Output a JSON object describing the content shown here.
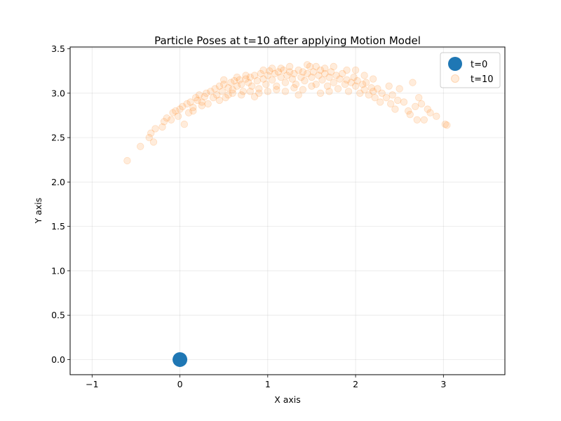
{
  "chart_data": {
    "type": "scatter",
    "title": "Particle Poses at t=10 after applying Motion Model",
    "xlabel": "X axis",
    "ylabel": "Y axis",
    "xlim": [
      -1.25,
      3.7
    ],
    "ylim": [
      -0.17,
      3.52
    ],
    "xticks": [
      -1,
      0,
      1,
      2,
      3
    ],
    "yticks": [
      0.0,
      0.5,
      1.0,
      1.5,
      2.0,
      2.5,
      3.0,
      3.5
    ],
    "xtick_labels": [
      "−1",
      "0",
      "1",
      "2",
      "3"
    ],
    "ytick_labels": [
      "0.0",
      "0.5",
      "1.0",
      "1.5",
      "2.0",
      "2.5",
      "3.0",
      "3.5"
    ],
    "grid": true,
    "legend_position": "top-right",
    "series": [
      {
        "name": "t=0",
        "color": "#1f77b4",
        "points": [
          [
            0,
            0
          ]
        ]
      },
      {
        "name": "t=10",
        "color": "#ff7f0e",
        "alpha": 0.15,
        "points": [
          [
            -0.6,
            2.24
          ],
          [
            -0.45,
            2.4
          ],
          [
            -0.35,
            2.5
          ],
          [
            -0.33,
            2.55
          ],
          [
            -0.3,
            2.45
          ],
          [
            -0.28,
            2.6
          ],
          [
            -0.2,
            2.62
          ],
          [
            -0.18,
            2.68
          ],
          [
            -0.15,
            2.72
          ],
          [
            -0.1,
            2.7
          ],
          [
            -0.08,
            2.78
          ],
          [
            -0.05,
            2.8
          ],
          [
            -0.02,
            2.74
          ],
          [
            0.0,
            2.82
          ],
          [
            0.03,
            2.85
          ],
          [
            0.05,
            2.65
          ],
          [
            0.08,
            2.88
          ],
          [
            0.1,
            2.78
          ],
          [
            0.12,
            2.9
          ],
          [
            0.15,
            2.84
          ],
          [
            0.18,
            2.95
          ],
          [
            0.2,
            2.92
          ],
          [
            0.22,
            2.98
          ],
          [
            0.25,
            2.9
          ],
          [
            0.28,
            2.96
          ],
          [
            0.3,
            3.0
          ],
          [
            0.32,
            2.88
          ],
          [
            0.35,
            3.02
          ],
          [
            0.38,
            2.95
          ],
          [
            0.4,
            3.05
          ],
          [
            0.42,
            2.98
          ],
          [
            0.45,
            3.08
          ],
          [
            0.48,
            3.02
          ],
          [
            0.5,
            3.1
          ],
          [
            0.52,
            2.95
          ],
          [
            0.55,
            3.06
          ],
          [
            0.58,
            3.12
          ],
          [
            0.6,
            3.04
          ],
          [
            0.62,
            3.14
          ],
          [
            0.65,
            3.08
          ],
          [
            0.68,
            3.15
          ],
          [
            0.7,
            3.1
          ],
          [
            0.72,
            3.02
          ],
          [
            0.75,
            3.16
          ],
          [
            0.78,
            3.12
          ],
          [
            0.8,
            3.18
          ],
          [
            0.82,
            3.08
          ],
          [
            0.85,
            3.2
          ],
          [
            0.88,
            3.14
          ],
          [
            0.9,
            3.05
          ],
          [
            0.92,
            3.22
          ],
          [
            0.95,
            3.16
          ],
          [
            0.98,
            3.1
          ],
          [
            1.0,
            3.2
          ],
          [
            1.02,
            3.25
          ],
          [
            1.05,
            3.15
          ],
          [
            1.08,
            3.22
          ],
          [
            1.1,
            3.08
          ],
          [
            1.12,
            3.24
          ],
          [
            1.15,
            3.18
          ],
          [
            1.18,
            3.26
          ],
          [
            1.2,
            3.12
          ],
          [
            1.22,
            3.2
          ],
          [
            1.25,
            3.24
          ],
          [
            1.28,
            3.16
          ],
          [
            1.3,
            3.22
          ],
          [
            1.32,
            3.1
          ],
          [
            1.35,
            3.26
          ],
          [
            1.38,
            3.18
          ],
          [
            1.4,
            3.24
          ],
          [
            1.42,
            3.14
          ],
          [
            1.45,
            3.22
          ],
          [
            1.48,
            3.3
          ],
          [
            1.5,
            3.18
          ],
          [
            1.52,
            3.24
          ],
          [
            1.55,
            3.1
          ],
          [
            1.58,
            3.2
          ],
          [
            1.6,
            3.26
          ],
          [
            1.62,
            3.15
          ],
          [
            1.65,
            3.22
          ],
          [
            1.68,
            3.08
          ],
          [
            1.7,
            3.18
          ],
          [
            1.72,
            3.24
          ],
          [
            1.75,
            3.12
          ],
          [
            1.78,
            3.2
          ],
          [
            1.8,
            3.05
          ],
          [
            1.82,
            3.16
          ],
          [
            1.85,
            3.22
          ],
          [
            1.88,
            3.1
          ],
          [
            1.9,
            3.15
          ],
          [
            1.92,
            3.02
          ],
          [
            1.95,
            3.12
          ],
          [
            1.98,
            3.18
          ],
          [
            2.0,
            3.08
          ],
          [
            2.02,
            3.14
          ],
          [
            2.05,
            3.0
          ],
          [
            2.08,
            3.1
          ],
          [
            2.1,
            3.04
          ],
          [
            2.12,
            3.12
          ],
          [
            2.15,
            2.98
          ],
          [
            2.18,
            3.06
          ],
          [
            2.2,
            3.02
          ],
          [
            2.22,
            2.95
          ],
          [
            2.25,
            3.05
          ],
          [
            2.28,
            2.9
          ],
          [
            2.3,
            3.0
          ],
          [
            2.35,
            2.95
          ],
          [
            2.38,
            3.08
          ],
          [
            2.4,
            2.88
          ],
          [
            2.42,
            2.98
          ],
          [
            2.45,
            2.82
          ],
          [
            2.48,
            2.92
          ],
          [
            2.5,
            3.05
          ],
          [
            2.55,
            2.9
          ],
          [
            2.6,
            2.8
          ],
          [
            2.62,
            2.76
          ],
          [
            2.65,
            3.12
          ],
          [
            2.68,
            2.85
          ],
          [
            2.7,
            2.7
          ],
          [
            2.72,
            2.95
          ],
          [
            2.75,
            2.88
          ],
          [
            2.78,
            2.7
          ],
          [
            2.82,
            2.82
          ],
          [
            2.85,
            2.78
          ],
          [
            2.92,
            2.74
          ],
          [
            3.02,
            2.65
          ],
          [
            3.04,
            2.64
          ],
          [
            0.6,
            3.0
          ],
          [
            0.7,
            2.98
          ],
          [
            0.8,
            3.02
          ],
          [
            0.9,
            3.0
          ],
          [
            1.0,
            3.02
          ],
          [
            1.1,
            3.04
          ],
          [
            1.2,
            3.02
          ],
          [
            1.3,
            3.06
          ],
          [
            1.4,
            3.04
          ],
          [
            1.5,
            3.08
          ],
          [
            1.6,
            3.0
          ],
          [
            1.7,
            3.02
          ],
          [
            1.35,
            2.98
          ],
          [
            0.85,
            2.96
          ],
          [
            0.55,
            2.98
          ],
          [
            0.45,
            2.92
          ],
          [
            0.25,
            2.86
          ],
          [
            0.15,
            2.8
          ],
          [
            1.25,
            3.3
          ],
          [
            1.15,
            3.28
          ],
          [
            1.05,
            3.28
          ],
          [
            0.95,
            3.26
          ],
          [
            1.55,
            3.3
          ],
          [
            1.65,
            3.28
          ],
          [
            1.75,
            3.3
          ],
          [
            1.45,
            3.32
          ],
          [
            0.75,
            3.2
          ],
          [
            0.65,
            3.18
          ],
          [
            0.5,
            3.15
          ],
          [
            2.0,
            3.26
          ],
          [
            2.1,
            3.2
          ],
          [
            2.2,
            3.16
          ],
          [
            1.9,
            3.26
          ]
        ]
      }
    ]
  }
}
